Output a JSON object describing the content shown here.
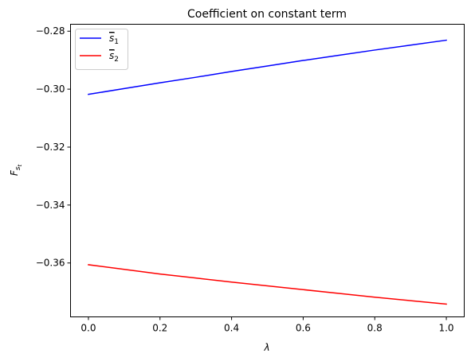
{
  "chart_data": {
    "type": "line",
    "title": "Coefficient on constant term",
    "xlabel": "λ",
    "ylabel": "F_{s_t}",
    "xlim": [
      -0.05,
      1.05
    ],
    "ylim": [
      -0.3786,
      -0.2776
    ],
    "xticks": [
      0.0,
      0.2,
      0.4,
      0.6,
      0.8,
      1.0
    ],
    "xtick_labels": [
      "0.0",
      "0.2",
      "0.4",
      "0.6",
      "0.8",
      "1.0"
    ],
    "yticks": [
      -0.28,
      -0.3,
      -0.32,
      -0.34,
      -0.36
    ],
    "ytick_labels": [
      "−0.28",
      "−0.30",
      "−0.32",
      "−0.34",
      "−0.36"
    ],
    "grid": false,
    "legend": "top-left",
    "x": [
      0.0,
      0.1,
      0.2,
      0.3,
      0.4,
      0.5,
      0.6,
      0.7,
      0.8,
      0.9,
      1.0
    ],
    "series": [
      {
        "name": "s̄1",
        "label_base": "s",
        "label_sub": "1",
        "color": "#0000ff",
        "values": [
          -0.3018,
          -0.2998,
          -0.2978,
          -0.2959,
          -0.2939,
          -0.292,
          -0.2901,
          -0.2883,
          -0.2865,
          -0.2848,
          -0.2831
        ]
      },
      {
        "name": "s̄2",
        "label_base": "s",
        "label_sub": "2",
        "color": "#ff0000",
        "values": [
          -0.3606,
          -0.3622,
          -0.3638,
          -0.3652,
          -0.3666,
          -0.3679,
          -0.3692,
          -0.3705,
          -0.3718,
          -0.373,
          -0.3742
        ]
      }
    ]
  }
}
